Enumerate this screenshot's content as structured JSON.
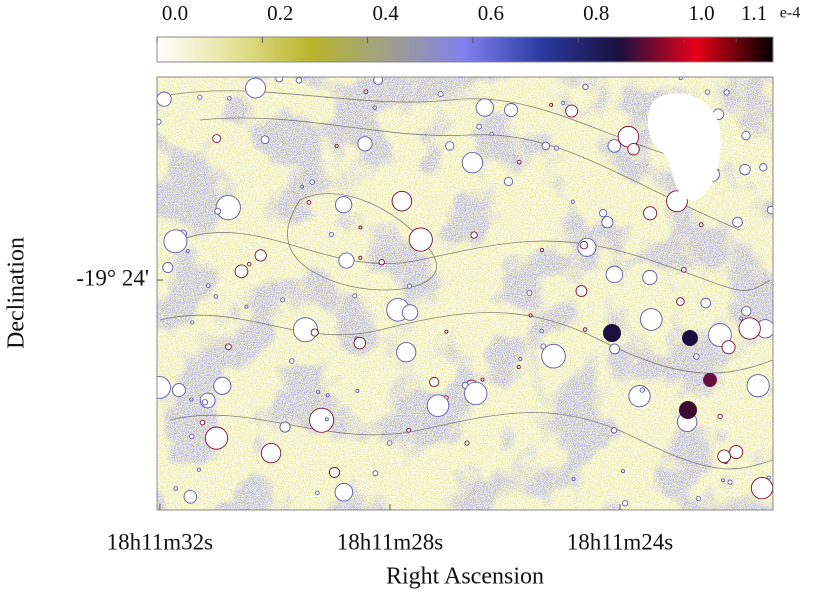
{
  "chart_data": {
    "type": "image",
    "xlabel": "Right Ascension",
    "ylabel": "Declination",
    "xlim": [
      32.05,
      21.34
    ],
    "xticks": [
      {
        "value": 32,
        "label": "18h11m32s"
      },
      {
        "value": 28,
        "label": "18h11m28s"
      },
      {
        "value": 24,
        "label": "18h11m24s"
      }
    ],
    "ylim": [
      -19.4531,
      -19.3531
    ],
    "yticks": [
      {
        "value": -19.4,
        "label": "-19° 24'"
      }
    ],
    "clim": [
      0,
      1.17
    ],
    "cticks": [
      {
        "value": 0,
        "label": "0.0"
      },
      0.2,
      0.4,
      0.6,
      0.8,
      {
        "value": 1,
        "label": "1.0"
      },
      1.1
    ],
    "colorbar_exponent": "e-4",
    "colormap": [
      "#ffffff",
      "#e6e29a",
      "#b9b42a",
      "#a0a08a",
      "#8080f0",
      "#2a3aa0",
      "#1a1040",
      "#e8001a",
      "#000000"
    ]
  }
}
